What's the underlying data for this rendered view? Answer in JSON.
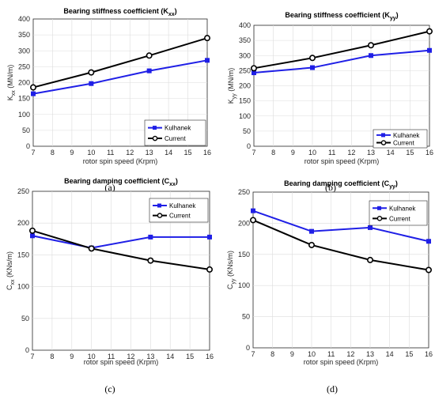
{
  "colors": {
    "kulhanek": "#1f1fe6",
    "current": "#000000"
  },
  "chart_data": [
    {
      "type": "line",
      "panel_label": "(a)",
      "title_main": "Bearing stiffness coefficient (K",
      "title_sub": "xx",
      "title_end": ")",
      "ylabel_main": "K",
      "ylabel_sub": "xx",
      "ylabel_end": " (MN/m)",
      "xlabel": "rotor spin speed (Krpm)",
      "xlim": [
        7,
        16
      ],
      "ylim": [
        0,
        400
      ],
      "xticks": [
        7,
        8,
        9,
        10,
        11,
        12,
        13,
        14,
        15,
        16
      ],
      "yticks": [
        0,
        50,
        100,
        150,
        200,
        250,
        300,
        350,
        400
      ],
      "x": [
        7,
        10,
        13,
        16
      ],
      "series": [
        {
          "name": "Kulhanek",
          "marker": "square",
          "values": [
            165,
            197,
            237,
            270
          ]
        },
        {
          "name": "Current",
          "marker": "circle",
          "values": [
            185,
            232,
            285,
            340
          ]
        }
      ],
      "grid": true,
      "legend": "lower-right"
    },
    {
      "type": "line",
      "panel_label": "(b)",
      "title_main": "Bearing stiffness coefficient (K",
      "title_sub": "yy",
      "title_end": ")",
      "ylabel_main": "K",
      "ylabel_sub": "yy",
      "ylabel_end": " (MN/m)",
      "xlabel": "rotor spin speed (Krpm)",
      "xlim": [
        7,
        16
      ],
      "ylim": [
        0,
        400
      ],
      "xticks": [
        7,
        8,
        9,
        10,
        11,
        12,
        13,
        14,
        15,
        16
      ],
      "yticks": [
        0,
        50,
        100,
        150,
        200,
        250,
        300,
        350,
        400
      ],
      "x": [
        7,
        10,
        13,
        16
      ],
      "series": [
        {
          "name": "Kulhanek",
          "marker": "square",
          "values": [
            243,
            260,
            300,
            317
          ]
        },
        {
          "name": "Current",
          "marker": "circle",
          "values": [
            258,
            292,
            334,
            380
          ]
        }
      ],
      "grid": true,
      "legend": "lower-right"
    },
    {
      "type": "line",
      "panel_label": "(c)",
      "title_main": "Bearing damping coefficient (C",
      "title_sub": "xx",
      "title_end": ")",
      "ylabel_main": "C",
      "ylabel_sub": "xx",
      "ylabel_end": " (KNs/m)",
      "xlabel": "rotor spin speed (Krpm)",
      "xlim": [
        7,
        16
      ],
      "ylim": [
        0,
        250
      ],
      "xticks": [
        7,
        8,
        9,
        10,
        11,
        12,
        13,
        14,
        15,
        16
      ],
      "yticks": [
        0,
        50,
        100,
        150,
        200,
        250
      ],
      "x": [
        7,
        10,
        13,
        16
      ],
      "series": [
        {
          "name": "Kulhanek",
          "marker": "square",
          "values": [
            180,
            161,
            178,
            178
          ]
        },
        {
          "name": "Current",
          "marker": "circle",
          "values": [
            188,
            160,
            141,
            127
          ]
        }
      ],
      "grid": true,
      "legend": "upper-right"
    },
    {
      "type": "line",
      "panel_label": "(d)",
      "title_main": "Bearing damping coefficient (C",
      "title_sub": "yy",
      "title_end": ")",
      "ylabel_main": "C",
      "ylabel_sub": "yy",
      "ylabel_end": " (KNs/m)",
      "xlabel": "rotor spin speed (Krpm)",
      "xlim": [
        7,
        16
      ],
      "ylim": [
        0,
        250
      ],
      "xticks": [
        7,
        8,
        9,
        10,
        11,
        12,
        13,
        14,
        15,
        16
      ],
      "yticks": [
        0,
        50,
        100,
        150,
        200,
        250
      ],
      "x": [
        7,
        10,
        13,
        16
      ],
      "series": [
        {
          "name": "Kulhanek",
          "marker": "square",
          "values": [
            220,
            187,
            193,
            171
          ]
        },
        {
          "name": "Current",
          "marker": "circle",
          "values": [
            205,
            165,
            141,
            125
          ]
        }
      ],
      "grid": true,
      "legend": "upper-right"
    }
  ]
}
